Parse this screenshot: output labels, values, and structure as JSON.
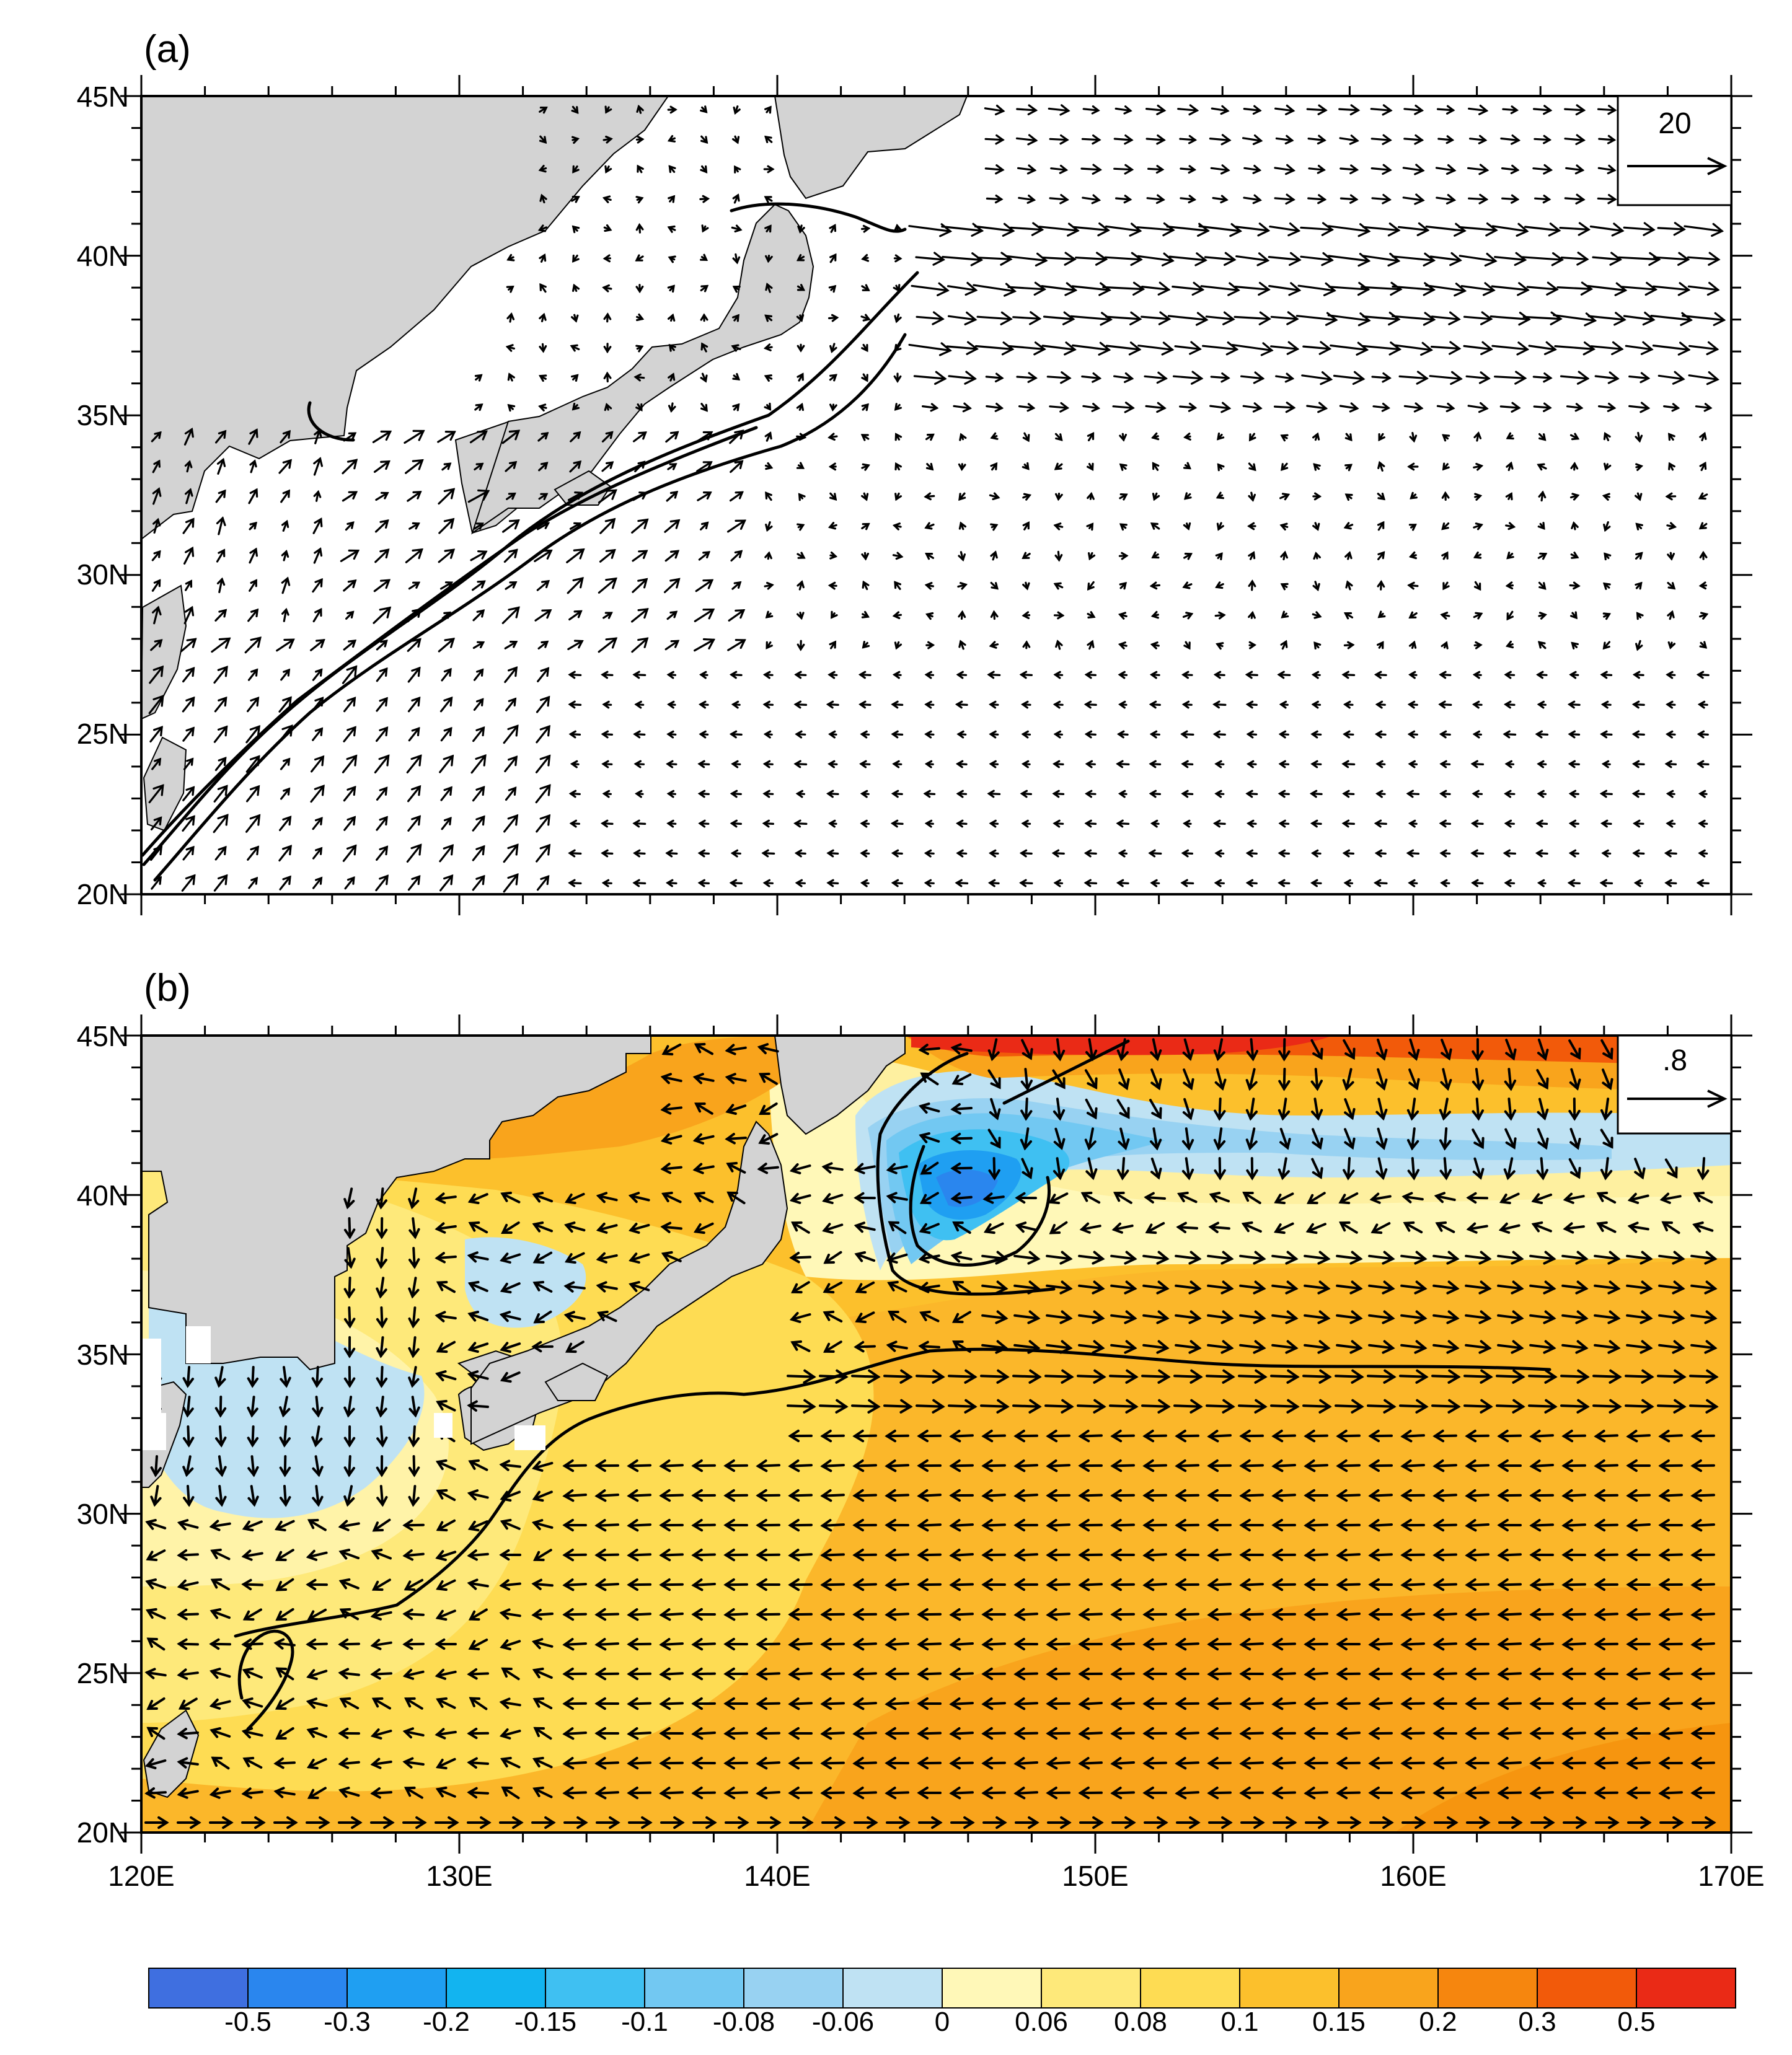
{
  "panels": [
    {
      "label": "(a)",
      "ref_vector_label": "20"
    },
    {
      "label": "(b)",
      "ref_vector_label": ".8"
    }
  ],
  "y_ticks": [
    "45N",
    "40N",
    "35N",
    "30N",
    "25N",
    "20N"
  ],
  "x_ticks": [
    "120E",
    "130E",
    "140E",
    "150E",
    "160E",
    "170E"
  ],
  "colorbar": {
    "colors": [
      "#3f6fe0",
      "#2a86ee",
      "#1f9ff2",
      "#12b4f0",
      "#3fc0f2",
      "#72c8f2",
      "#98d2f2",
      "#bfe2f3",
      "#fff8b8",
      "#fee97a",
      "#fedc53",
      "#fcc02c",
      "#f9a41c",
      "#f6860e",
      "#f25a0a",
      "#ea2a16"
    ],
    "labels": [
      "-0.5",
      "-0.3",
      "-0.2",
      "-0.15",
      "-0.1",
      "-0.08",
      "-0.06",
      "0",
      "0.06",
      "0.08",
      "0.1",
      "0.15",
      "0.2",
      "0.3",
      "0.5"
    ]
  },
  "colors": {
    "land": "#d3d3d3",
    "ocean_a": "#ffffff",
    "vector": "#000000"
  }
}
